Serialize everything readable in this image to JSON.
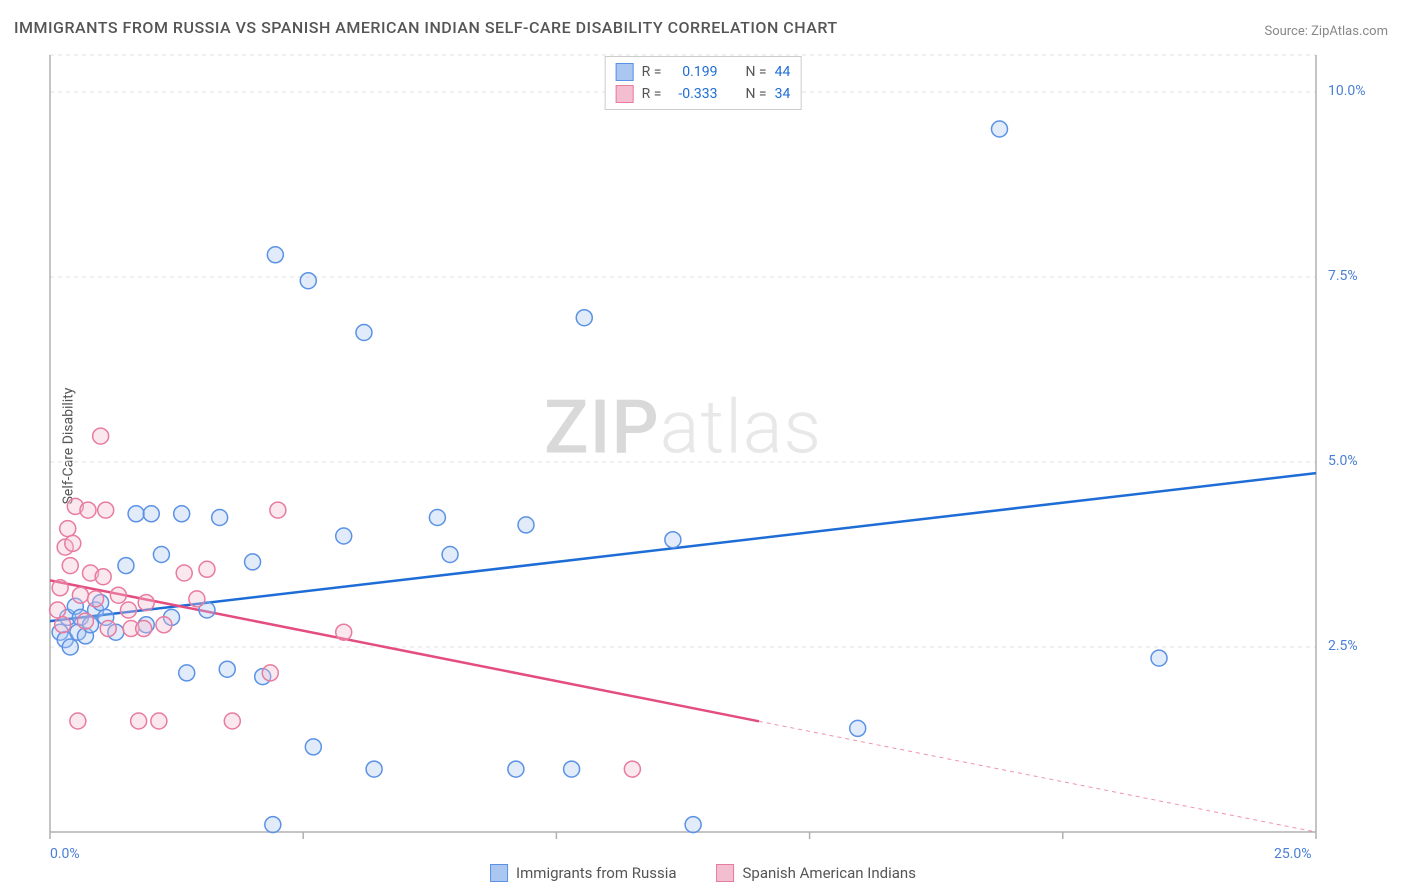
{
  "title": "IMMIGRANTS FROM RUSSIA VS SPANISH AMERICAN INDIAN SELF-CARE DISABILITY CORRELATION CHART",
  "source_prefix": "Source: ",
  "source_name": "ZipAtlas.com",
  "y_axis_label": "Self-Care Disability",
  "watermark_a": "ZIP",
  "watermark_b": "atlas",
  "chart": {
    "type": "scatter",
    "background_color": "#ffffff",
    "grid_color": "#e2e2e2",
    "axis_line_color": "#b0b0b0",
    "tick_label_color": "#4a7fd6",
    "xlim": [
      0,
      25
    ],
    "ylim": [
      0,
      10.5
    ],
    "x_ticks": [
      0,
      25
    ],
    "x_tick_labels": [
      "0.0%",
      "25.0%"
    ],
    "y_ticks": [
      2.5,
      5.0,
      7.5,
      10.0
    ],
    "y_tick_labels": [
      "2.5%",
      "5.0%",
      "7.5%",
      "10.0%"
    ],
    "minor_x_ticks": [
      5,
      10,
      15,
      20
    ],
    "marker_radius": 8,
    "marker_stroke_width": 1.5,
    "marker_fill_opacity": 0.35,
    "trend_line_width": 2.5,
    "series": [
      {
        "name": "Immigrants from Russia",
        "color_stroke": "#5b92e5",
        "color_fill": "#a9c7f0",
        "trend_color": "#1e6dd6",
        "R": "0.199",
        "N": "44",
        "trend": {
          "x1": 0,
          "y1": 2.85,
          "x2": 25,
          "y2": 4.85,
          "solid_until_x": 25
        },
        "points": [
          {
            "x": 0.2,
            "y": 2.7
          },
          {
            "x": 0.3,
            "y": 2.6
          },
          {
            "x": 0.35,
            "y": 2.9
          },
          {
            "x": 0.4,
            "y": 2.5
          },
          {
            "x": 0.5,
            "y": 3.05
          },
          {
            "x": 0.55,
            "y": 2.7
          },
          {
            "x": 0.6,
            "y": 2.9
          },
          {
            "x": 0.7,
            "y": 2.65
          },
          {
            "x": 0.8,
            "y": 2.8
          },
          {
            "x": 0.9,
            "y": 3.0
          },
          {
            "x": 1.0,
            "y": 3.1
          },
          {
            "x": 1.1,
            "y": 2.9
          },
          {
            "x": 1.3,
            "y": 2.7
          },
          {
            "x": 1.5,
            "y": 3.6
          },
          {
            "x": 1.7,
            "y": 4.3
          },
          {
            "x": 1.9,
            "y": 2.8
          },
          {
            "x": 2.0,
            "y": 4.3
          },
          {
            "x": 2.2,
            "y": 3.75
          },
          {
            "x": 2.4,
            "y": 2.9
          },
          {
            "x": 2.6,
            "y": 4.3
          },
          {
            "x": 2.7,
            "y": 2.15
          },
          {
            "x": 3.1,
            "y": 3.0
          },
          {
            "x": 3.35,
            "y": 4.25
          },
          {
            "x": 3.5,
            "y": 2.2
          },
          {
            "x": 4.0,
            "y": 3.65
          },
          {
            "x": 4.2,
            "y": 2.1
          },
          {
            "x": 4.45,
            "y": 7.8
          },
          {
            "x": 4.4,
            "y": 0.1
          },
          {
            "x": 5.1,
            "y": 7.45
          },
          {
            "x": 5.2,
            "y": 1.15
          },
          {
            "x": 5.8,
            "y": 4.0
          },
          {
            "x": 6.2,
            "y": 6.75
          },
          {
            "x": 6.4,
            "y": 0.85
          },
          {
            "x": 7.65,
            "y": 4.25
          },
          {
            "x": 7.9,
            "y": 3.75
          },
          {
            "x": 9.2,
            "y": 0.85
          },
          {
            "x": 9.4,
            "y": 4.15
          },
          {
            "x": 10.55,
            "y": 6.95
          },
          {
            "x": 10.3,
            "y": 0.85
          },
          {
            "x": 12.3,
            "y": 3.95
          },
          {
            "x": 12.7,
            "y": 0.1
          },
          {
            "x": 15.95,
            "y": 1.4
          },
          {
            "x": 18.75,
            "y": 9.5
          },
          {
            "x": 21.9,
            "y": 2.35
          }
        ]
      },
      {
        "name": "Spanish American Indians",
        "color_stroke": "#e87ba0",
        "color_fill": "#f4bed1",
        "trend_color": "#e34d7f",
        "R": "-0.333",
        "N": "34",
        "trend": {
          "x1": 0,
          "y1": 3.4,
          "x2": 25,
          "y2": 0.0,
          "solid_until_x": 14
        },
        "points": [
          {
            "x": 0.15,
            "y": 3.0
          },
          {
            "x": 0.2,
            "y": 3.3
          },
          {
            "x": 0.25,
            "y": 2.8
          },
          {
            "x": 0.3,
            "y": 3.85
          },
          {
            "x": 0.35,
            "y": 4.1
          },
          {
            "x": 0.4,
            "y": 3.6
          },
          {
            "x": 0.45,
            "y": 3.9
          },
          {
            "x": 0.5,
            "y": 4.4
          },
          {
            "x": 0.55,
            "y": 1.5
          },
          {
            "x": 0.6,
            "y": 3.2
          },
          {
            "x": 0.7,
            "y": 2.85
          },
          {
            "x": 0.75,
            "y": 4.35
          },
          {
            "x": 0.8,
            "y": 3.5
          },
          {
            "x": 0.9,
            "y": 3.15
          },
          {
            "x": 1.0,
            "y": 5.35
          },
          {
            "x": 1.05,
            "y": 3.45
          },
          {
            "x": 1.1,
            "y": 4.35
          },
          {
            "x": 1.15,
            "y": 2.75
          },
          {
            "x": 1.35,
            "y": 3.2
          },
          {
            "x": 1.55,
            "y": 3.0
          },
          {
            "x": 1.6,
            "y": 2.75
          },
          {
            "x": 1.75,
            "y": 1.5
          },
          {
            "x": 1.85,
            "y": 2.75
          },
          {
            "x": 1.9,
            "y": 3.1
          },
          {
            "x": 2.15,
            "y": 1.5
          },
          {
            "x": 2.25,
            "y": 2.8
          },
          {
            "x": 2.65,
            "y": 3.5
          },
          {
            "x": 2.9,
            "y": 3.15
          },
          {
            "x": 3.1,
            "y": 3.55
          },
          {
            "x": 3.6,
            "y": 1.5
          },
          {
            "x": 4.35,
            "y": 2.15
          },
          {
            "x": 4.5,
            "y": 4.35
          },
          {
            "x": 5.8,
            "y": 2.7
          },
          {
            "x": 11.5,
            "y": 0.85
          }
        ]
      }
    ]
  },
  "legend_box": {
    "r_label": "R =",
    "n_label": "N ="
  },
  "bottom_legend": [
    {
      "label": "Immigrants from Russia",
      "fill": "#a9c7f0",
      "stroke": "#5b92e5"
    },
    {
      "label": "Spanish American Indians",
      "fill": "#f4bed1",
      "stroke": "#e87ba0"
    }
  ]
}
